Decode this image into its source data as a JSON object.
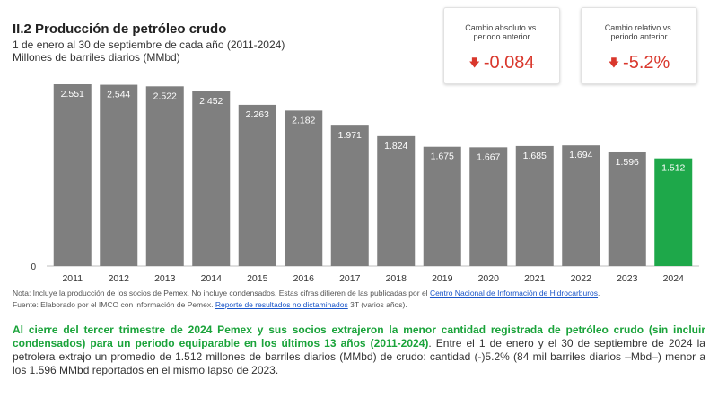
{
  "header": {
    "title": "II.2 Producción de petróleo crudo",
    "subtitle1": "1 de enero al 30 de septiembre de cada año (2011-2024)",
    "subtitle2": "Millones de barriles diarios (MMbd)"
  },
  "kpis": [
    {
      "label": "Cambio absoluto vs. periodo anterior",
      "value": "-0.084",
      "icon": "down-arrow-icon",
      "color": "#d9372c"
    },
    {
      "label": "Cambio relativo vs. periodo anterior",
      "value": "-5.2%",
      "icon": "down-arrow-icon",
      "color": "#d9372c"
    }
  ],
  "chart_data": {
    "type": "bar",
    "categories": [
      "2011",
      "2012",
      "2013",
      "2014",
      "2015",
      "2016",
      "2017",
      "2018",
      "2019",
      "2020",
      "2021",
      "2022",
      "2023",
      "2024"
    ],
    "values": [
      2.551,
      2.544,
      2.522,
      2.452,
      2.263,
      2.182,
      1.971,
      1.824,
      1.675,
      1.667,
      1.685,
      1.694,
      1.596,
      1.512
    ],
    "labels": [
      "2.551",
      "2.544",
      "2.522",
      "2.452",
      "2.263",
      "2.182",
      "1.971",
      "1.824",
      "1.675",
      "1.667",
      "1.685",
      "1.694",
      "1.596",
      "1.512"
    ],
    "y_tick_label": "0",
    "ylim": [
      0,
      2.551
    ],
    "bar_color": "#7f7f7f",
    "highlight_color": "#1ea84a",
    "highlight_index": 13,
    "grid": false
  },
  "notes": {
    "nota_text": "Nota: Incluye la producción de los socios de Pemex. No incluye condensados. Estas cifras difieren de las publicadas por el ",
    "nota_link": "Centro Nacional de Información de Hidrocarburos",
    "nota_end": ".",
    "fuente_text": "Fuente: Elaborado por el IMCO con información de Pemex. ",
    "fuente_link": "Reporte de resultados no dictaminados",
    "fuente_end": " 3T (varios años)."
  },
  "paragraph": {
    "highlight": "Al cierre del tercer trimestre de 2024 Pemex y sus socios extrajeron la menor cantidad registrada de petróleo crudo (sin incluir condensados) para un periodo equiparable en los últimos 13 años (2011-2024)",
    "rest": ". Entre el 1 de enero y el 30 de septiembre de 2024 la petrolera extrajo un promedio de 1.512 millones de barriles diarios (MMbd) de crudo: cantidad (-)5.2% (84 mil barriles diarios –Mbd–) menor a los 1.596 MMbd reportados en el mismo lapso de 2023."
  }
}
